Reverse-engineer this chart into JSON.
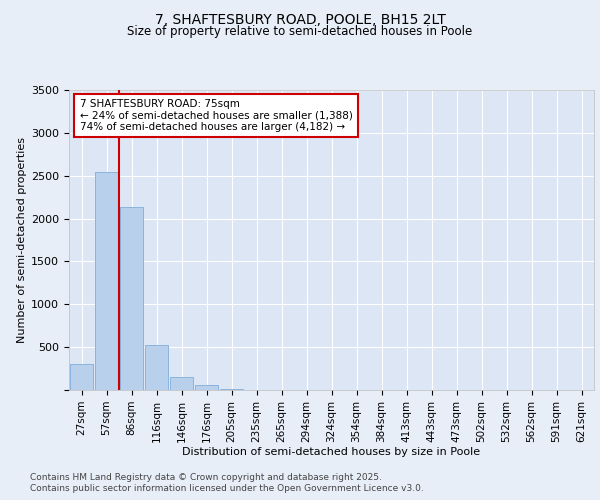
{
  "title_line1": "7, SHAFTESBURY ROAD, POOLE, BH15 2LT",
  "title_line2": "Size of property relative to semi-detached houses in Poole",
  "xlabel": "Distribution of semi-detached houses by size in Poole",
  "ylabel": "Number of semi-detached properties",
  "categories": [
    "27sqm",
    "57sqm",
    "86sqm",
    "116sqm",
    "146sqm",
    "176sqm",
    "205sqm",
    "235sqm",
    "265sqm",
    "294sqm",
    "324sqm",
    "354sqm",
    "384sqm",
    "413sqm",
    "443sqm",
    "473sqm",
    "502sqm",
    "532sqm",
    "562sqm",
    "591sqm",
    "621sqm"
  ],
  "values": [
    300,
    2540,
    2130,
    520,
    150,
    60,
    15,
    0,
    0,
    0,
    0,
    0,
    0,
    0,
    0,
    0,
    0,
    0,
    0,
    0,
    0
  ],
  "bar_color": "#b8d0ec",
  "bar_edge_color": "#8ab4dc",
  "property_line_x": 1.5,
  "property_line_color": "#cc0000",
  "annotation_text": "7 SHAFTESBURY ROAD: 75sqm\n← 24% of semi-detached houses are smaller (1,388)\n74% of semi-detached houses are larger (4,182) →",
  "annotation_box_color": "#cc0000",
  "ylim": [
    0,
    3500
  ],
  "yticks": [
    0,
    500,
    1000,
    1500,
    2000,
    2500,
    3000,
    3500
  ],
  "background_color": "#e8eef8",
  "plot_bg_color": "#dde6f5",
  "grid_color": "#ffffff",
  "footer_line1": "Contains HM Land Registry data © Crown copyright and database right 2025.",
  "footer_line2": "Contains public sector information licensed under the Open Government Licence v3.0.",
  "title_fontsize": 10,
  "subtitle_fontsize": 8.5,
  "axis_label_fontsize": 8,
  "tick_fontsize": 7.5,
  "annotation_fontsize": 7.5,
  "footer_fontsize": 6.5
}
